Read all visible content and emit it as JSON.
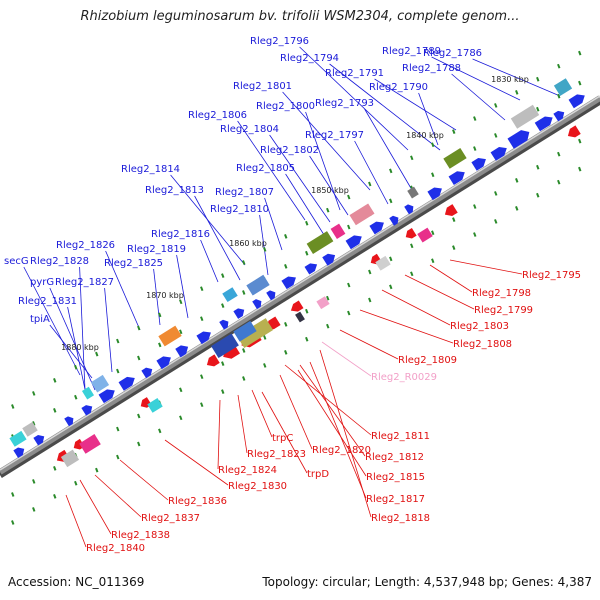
{
  "title": "Rhizobium leguminosarum bv. trifolii WSM2304, complete genom...",
  "footer": {
    "accession": "Accession: NC_011369",
    "summary": "Topology: circular; Length: 4,537,948 bp; Genes: 4,387"
  },
  "scale_ticks": [
    "1830 kbp",
    "1840 kbp",
    "1850 kbp",
    "1860 kbp",
    "1870 kbp",
    "1880 kbp"
  ],
  "upper_labels": [
    "Rleg2_1796",
    "Rleg2_1789",
    "Rleg2_1786",
    "Rleg2_1794",
    "Rleg2_1791",
    "Rleg2_1788",
    "Rleg2_1801",
    "Rleg2_1790",
    "Rleg2_1793",
    "Rleg2_1800",
    "Rleg2_1806",
    "Rleg2_1804",
    "Rleg2_1797",
    "Rleg2_1802",
    "Rleg2_1814",
    "Rleg2_1805",
    "Rleg2_1813",
    "Rleg2_1807",
    "Rleg2_1810",
    "Rleg2_1816",
    "Rleg2_1826",
    "Rleg2_1819",
    "secG",
    "Rleg2_1828",
    "Rleg2_1825",
    "pyrG",
    "Rleg2_1827",
    "Rleg2_1831",
    "tpiA"
  ],
  "lower_labels": [
    "Rleg2_1795",
    "Rleg2_1798",
    "Rleg2_1799",
    "Rleg2_1803",
    "Rleg2_1808",
    "Rleg2_1809",
    "Rleg2_R0029",
    "Rleg2_1811",
    "trpC",
    "Rleg2_1820",
    "Rleg2_1812",
    "Rleg2_1823",
    "Rleg2_1815",
    "trpD",
    "Rleg2_1824",
    "Rleg2_1817",
    "Rleg2_1830",
    "Rleg2_1818",
    "Rleg2_1836",
    "Rleg2_1837",
    "Rleg2_1838",
    "Rleg2_1840"
  ],
  "colors": {
    "forward_gene": "#1f2fe8",
    "reverse_gene": "#e8151b",
    "rna_gene": "#f2a0c8",
    "upper_label": "#1a1ad8",
    "lower_label": "#e01010",
    "backbone": "#8c8c8c",
    "tick_mark": "#2a8a2a"
  }
}
